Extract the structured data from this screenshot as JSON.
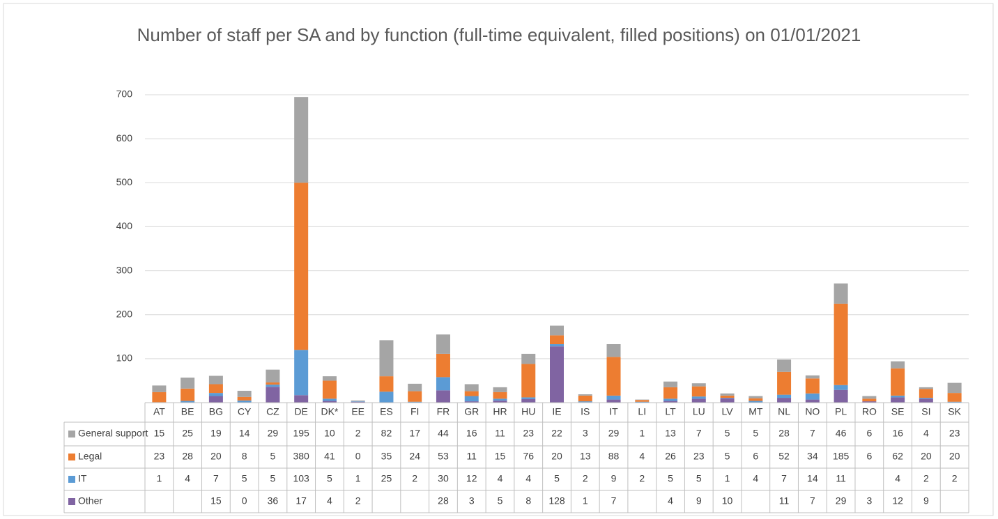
{
  "chart_data": {
    "type": "stacked_bar",
    "title": "Number of staff per SA and by function (full-time equivalent, filled positions) on 01/01/2021",
    "categories": [
      "AT",
      "BE",
      "BG",
      "CY",
      "CZ",
      "DE",
      "DK*",
      "EE",
      "ES",
      "FI",
      "FR",
      "GR",
      "HR",
      "HU",
      "IE",
      "IS",
      "IT",
      "LI",
      "LT",
      "LU",
      "LV",
      "MT",
      "NL",
      "NO",
      "PL",
      "RO",
      "SE",
      "SI",
      "SK"
    ],
    "series": [
      {
        "name": "General support",
        "color": "#a5a5a5",
        "values": [
          15,
          25,
          19,
          14,
          29,
          195,
          10,
          2,
          82,
          17,
          44,
          16,
          11,
          23,
          22,
          3,
          29,
          1,
          13,
          7,
          5,
          5,
          28,
          7,
          46,
          6,
          16,
          4,
          23
        ]
      },
      {
        "name": "Legal",
        "color": "#ed7d31",
        "values": [
          23,
          28,
          20,
          8,
          5,
          380,
          41,
          0,
          35,
          24,
          53,
          11,
          15,
          76,
          20,
          13,
          88,
          4,
          26,
          23,
          5,
          6,
          52,
          34,
          185,
          6,
          62,
          20,
          20
        ]
      },
      {
        "name": "IT",
        "color": "#5b9bd5",
        "values": [
          1,
          4,
          7,
          5,
          5,
          103,
          5,
          1,
          25,
          2,
          30,
          12,
          4,
          4,
          5,
          2,
          9,
          2,
          5,
          5,
          1,
          4,
          7,
          14,
          11,
          null,
          4,
          2,
          2
        ]
      },
      {
        "name": "Other",
        "color": "#8064a2",
        "values": [
          null,
          null,
          15,
          0,
          36,
          17,
          4,
          2,
          null,
          null,
          28,
          3,
          5,
          8,
          128,
          1,
          7,
          null,
          4,
          9,
          10,
          null,
          11,
          7,
          29,
          3,
          12,
          9,
          null
        ]
      }
    ],
    "ylim": [
      0,
      700
    ],
    "yticks": [
      100,
      200,
      300,
      400,
      500,
      600,
      700
    ],
    "grid": true
  }
}
